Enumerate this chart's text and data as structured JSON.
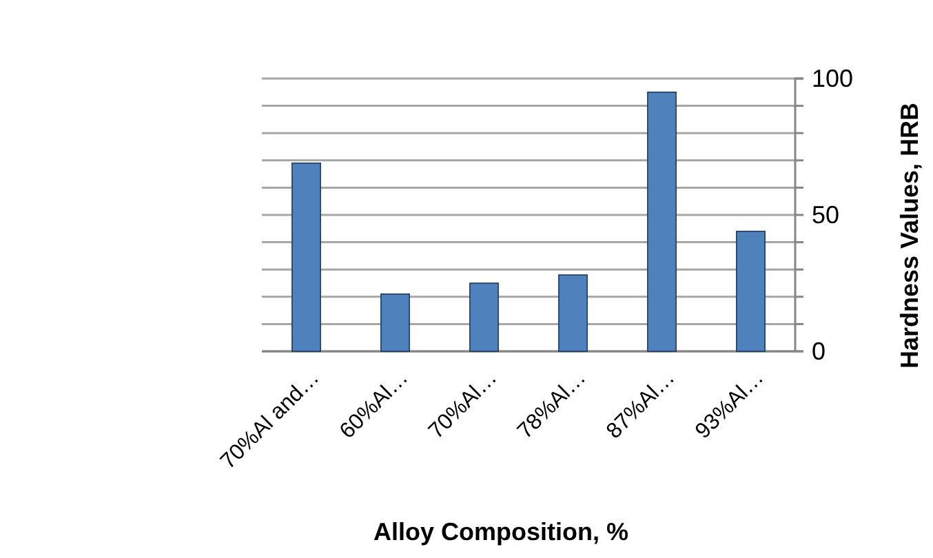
{
  "chart_data": {
    "type": "bar",
    "xlabel": "Alloy Composition, %",
    "ylabel": "Hardness Values, HRB",
    "categories": [
      "70%Al and…",
      "60%Al…",
      "70%Al…",
      "78%Al…",
      "87%Al…",
      "93%Al…"
    ],
    "values": [
      69,
      21,
      25,
      28,
      95,
      44
    ],
    "color": "#4f81bd",
    "ylim": [
      0,
      100
    ],
    "yticks": [
      0,
      {
        "value": 10,
        "label": null
      },
      {
        "value": 20,
        "label": null
      },
      {
        "value": 30,
        "label": null
      },
      {
        "value": 40,
        "label": null
      },
      50,
      {
        "value": 60,
        "label": null
      },
      {
        "value": 70,
        "label": null
      },
      {
        "value": 80,
        "label": null
      },
      {
        "value": 90,
        "label": null
      },
      100
    ],
    "grid": true
  }
}
